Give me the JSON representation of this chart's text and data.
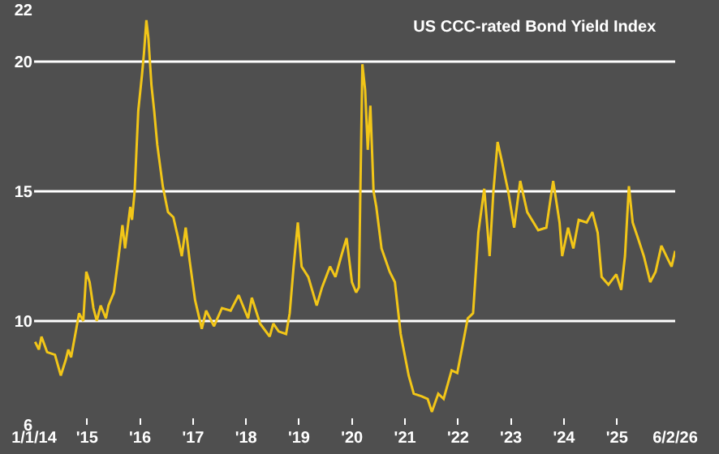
{
  "chart_data": {
    "type": "line",
    "title": "US CCC-rated Bond Yield Index",
    "x": [
      "2014-01-08",
      "2014-02-03",
      "2014-02-21",
      "2014-04-01",
      "2014-05-25",
      "2014-07-04",
      "2014-08-07",
      "2014-08-25",
      "2014-09-13",
      "2014-10-19",
      "2014-11-07",
      "2014-12-06",
      "2014-12-27",
      "2015-01-19",
      "2015-02-14",
      "2015-03-09",
      "2015-04-05",
      "2015-05-11",
      "2015-05-29",
      "2015-07-05",
      "2015-08-07",
      "2015-09-02",
      "2015-09-20",
      "2015-10-26",
      "2015-11-07",
      "2015-11-25",
      "2015-12-20",
      "2016-01-15",
      "2016-01-28",
      "2016-02-14",
      "2016-02-28",
      "2016-03-20",
      "2016-04-08",
      "2016-04-29",
      "2016-06-06",
      "2016-07-12",
      "2016-08-18",
      "2016-09-20",
      "2016-10-15",
      "2016-11-11",
      "2016-12-09",
      "2017-01-15",
      "2017-03-02",
      "2017-04-01",
      "2017-05-25",
      "2017-07-19",
      "2017-09-17",
      "2017-11-11",
      "2018-01-15",
      "2018-02-10",
      "2018-04-08",
      "2018-06-13",
      "2018-07-08",
      "2018-08-14",
      "2018-10-04",
      "2018-10-29",
      "2018-11-25",
      "2018-12-24",
      "2019-01-19",
      "2019-03-06",
      "2019-05-03",
      "2019-06-09",
      "2019-08-03",
      "2019-09-09",
      "2019-10-19",
      "2019-11-25",
      "2020-01-01",
      "2020-01-30",
      "2020-02-18",
      "2020-02-28",
      "2020-03-13",
      "2020-04-01",
      "2020-04-19",
      "2020-05-07",
      "2020-05-29",
      "2020-06-17",
      "2020-07-23",
      "2020-09-17",
      "2020-10-23",
      "2020-12-02",
      "2021-01-26",
      "2021-03-02",
      "2021-04-26",
      "2021-06-06",
      "2021-07-05",
      "2021-08-18",
      "2021-09-24",
      "2021-11-18",
      "2021-12-27",
      "2022-02-03",
      "2022-03-09",
      "2022-04-15",
      "2022-05-11",
      "2022-05-21",
      "2022-07-01",
      "2022-08-07",
      "2022-09-02",
      "2022-10-01",
      "2022-10-29",
      "2022-12-13",
      "2023-01-23",
      "2023-03-06",
      "2023-04-23",
      "2023-07-08",
      "2023-09-02",
      "2023-10-19",
      "2023-12-02",
      "2023-12-20",
      "2024-01-30",
      "2024-03-06",
      "2024-04-12",
      "2024-06-06",
      "2024-07-15",
      "2024-08-21",
      "2024-09-17",
      "2024-11-03",
      "2024-12-27",
      "2025-01-30",
      "2025-02-25",
      "2025-03-24",
      "2025-04-19",
      "2025-05-25",
      "2025-07-05",
      "2025-08-18",
      "2025-09-24",
      "2025-11-03",
      "2025-12-16",
      "2026-01-12",
      "2026-02-06"
    ],
    "series": [
      {
        "color": "#f2c618",
        "values": [
          9.2,
          8.9,
          9.4,
          8.8,
          8.7,
          7.9,
          8.5,
          8.9,
          8.6,
          9.7,
          10.3,
          10.0,
          11.9,
          11.5,
          10.5,
          10.0,
          10.6,
          10.1,
          10.6,
          11.1,
          12.5,
          13.7,
          12.8,
          14.4,
          13.9,
          15.0,
          18.1,
          19.5,
          20.3,
          21.6,
          20.9,
          19.1,
          18.1,
          16.8,
          15.2,
          14.2,
          14.0,
          13.2,
          12.5,
          13.6,
          12.3,
          10.8,
          9.7,
          10.4,
          9.8,
          10.5,
          10.4,
          11.0,
          10.1,
          10.9,
          9.9,
          9.4,
          9.9,
          9.6,
          9.5,
          10.3,
          12.1,
          13.8,
          12.1,
          11.7,
          10.6,
          11.3,
          12.1,
          11.7,
          12.5,
          13.2,
          11.5,
          11.1,
          11.3,
          15.0,
          19.9,
          18.9,
          16.6,
          18.3,
          15.0,
          14.4,
          12.8,
          11.9,
          11.5,
          9.5,
          7.9,
          7.2,
          7.1,
          7.0,
          6.5,
          7.2,
          7.0,
          8.1,
          8.0,
          9.1,
          10.1,
          10.3,
          12.5,
          13.4,
          15.1,
          12.5,
          15.0,
          16.9,
          16.2,
          15.0,
          13.6,
          15.4,
          14.2,
          13.5,
          13.6,
          15.4,
          13.8,
          12.5,
          13.6,
          12.8,
          13.9,
          13.8,
          14.2,
          13.4,
          11.7,
          11.4,
          11.8,
          11.2,
          12.5,
          15.2,
          13.8,
          13.2,
          12.5,
          11.5,
          11.9,
          12.9,
          12.4,
          12.1,
          12.7
        ]
      }
    ],
    "xlim": [
      "2014-01-01",
      "2026-02-06"
    ],
    "xticks": [
      {
        "value": "2014-01-01",
        "label": "1/1/14"
      },
      {
        "value": "2015-01-01",
        "label": "'15"
      },
      {
        "value": "2016-01-01",
        "label": "'16"
      },
      {
        "value": "2017-01-01",
        "label": "'17"
      },
      {
        "value": "2018-01-01",
        "label": "'18"
      },
      {
        "value": "2019-01-01",
        "label": "'19"
      },
      {
        "value": "2020-01-01",
        "label": "'20"
      },
      {
        "value": "2021-01-01",
        "label": "'21"
      },
      {
        "value": "2022-01-01",
        "label": "'22"
      },
      {
        "value": "2023-01-01",
        "label": "'23"
      },
      {
        "value": "2024-01-01",
        "label": "'24"
      },
      {
        "value": "2025-01-01",
        "label": "'25"
      },
      {
        "value": "2026-02-06",
        "label": "6/2/26"
      }
    ],
    "ylim": [
      6,
      22
    ],
    "yticks": [
      6,
      10,
      15,
      20,
      22
    ],
    "grid": "y",
    "line_style": "solid"
  }
}
